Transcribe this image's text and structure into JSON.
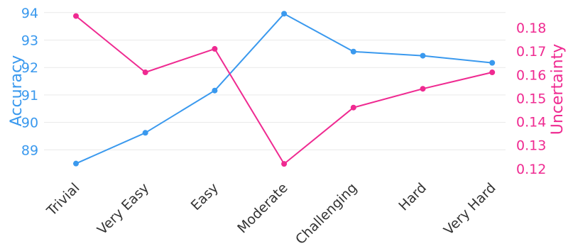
{
  "chart_data": {
    "type": "line",
    "categories": [
      "Trivial",
      "Very Easy",
      "Easy",
      "Moderate",
      "Challenging",
      "Hard",
      "Very Hard"
    ],
    "series": [
      {
        "name": "Accuracy",
        "axis": "left",
        "color": "#3a99ee",
        "values": [
          88.5,
          89.62,
          91.16,
          93.96,
          92.58,
          92.43,
          92.17
        ]
      },
      {
        "name": "Uncertainty",
        "axis": "right",
        "color": "#ef2a91",
        "values": [
          0.185,
          0.161,
          0.171,
          0.122,
          0.146,
          0.154,
          0.161
        ]
      }
    ],
    "ylabel": "Accuracy",
    "ylabel_right": "Uncertainty",
    "ylim": [
      88.0,
      94.15
    ],
    "ylim_right": [
      0.1163,
      0.1882
    ],
    "yticks": [
      "89",
      "90",
      "91",
      "92",
      "93",
      "94"
    ],
    "yticks_right": [
      "0.12",
      "0.13",
      "0.14",
      "0.15",
      "0.16",
      "0.17",
      "0.18"
    ],
    "grid": true,
    "legend": "none"
  }
}
